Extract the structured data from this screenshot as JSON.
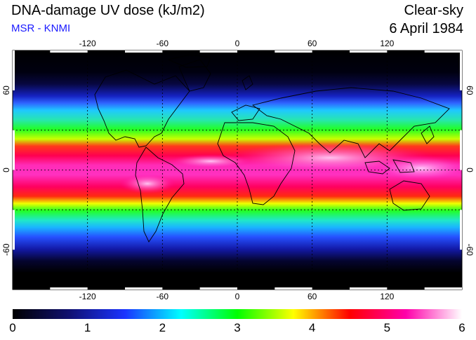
{
  "header": {
    "title": "DNA-damage UV dose (kJ/m2)",
    "source": "MSR - KNMI",
    "condition": "Clear-sky",
    "date": "6 April 1984"
  },
  "map": {
    "projection": "lat-lon",
    "lon_ticks": [
      "-120",
      "-60",
      "0",
      "60",
      "120"
    ],
    "lat_ticks": [
      "60",
      "0",
      "-60"
    ],
    "lon_tick_values": [
      -120,
      -60,
      0,
      60,
      120
    ],
    "lat_tick_values": [
      60,
      0,
      -60
    ],
    "grid_lat_lines": [
      30,
      0,
      -30
    ],
    "grid": true
  },
  "colorbar": {
    "min": 0,
    "max": 6,
    "labels": [
      "0",
      "1",
      "2",
      "3",
      "4",
      "5",
      "6"
    ],
    "colors": [
      "#000000",
      "#101070",
      "#1a33ff",
      "#00ffff",
      "#00ff00",
      "#ffff00",
      "#ff0000",
      "#ff00aa",
      "#ffffff"
    ]
  }
}
